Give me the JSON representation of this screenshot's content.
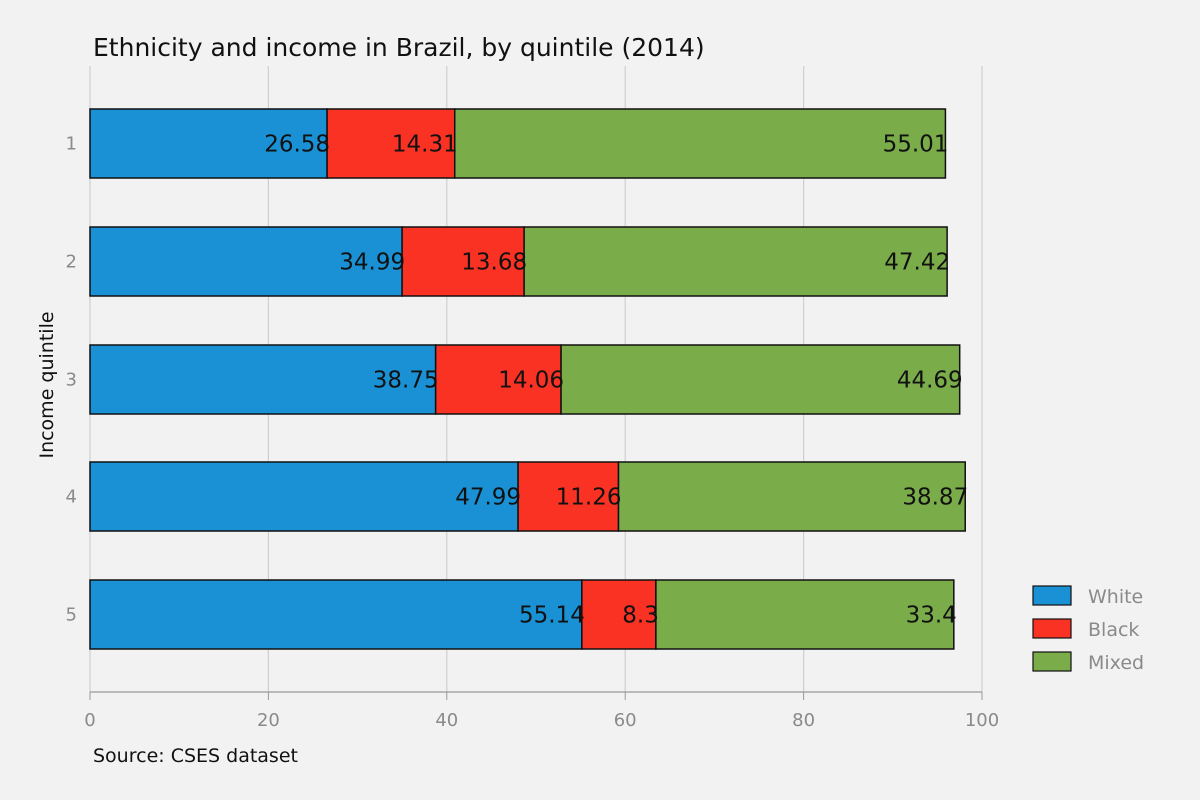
{
  "chart_data": {
    "type": "bar",
    "orientation": "horizontal",
    "stacked": true,
    "title": "Ethnicity and income in Brazil, by quintile (2014)",
    "source": "Source: CSES dataset",
    "xlabel": "",
    "ylabel": "Income quintile",
    "xlim": [
      0,
      100
    ],
    "x_ticks": [
      "0",
      "20",
      "40",
      "60",
      "80",
      "100"
    ],
    "categories": [
      "1",
      "2",
      "3",
      "4",
      "5"
    ],
    "series": [
      {
        "name": "White",
        "color": "#1a91d4",
        "values": [
          26.58,
          34.99,
          38.75,
          47.99,
          55.14
        ],
        "labels": [
          "26.58",
          "34.99",
          "38.75",
          "47.99",
          "55.14"
        ]
      },
      {
        "name": "Black",
        "color": "#f93223",
        "values": [
          14.31,
          13.68,
          14.06,
          11.26,
          8.3
        ],
        "labels": [
          "14.31",
          "13.68",
          "14.06",
          "11.26",
          "8.3"
        ]
      },
      {
        "name": "Mixed",
        "color": "#7aac4a",
        "values": [
          55.01,
          47.42,
          44.69,
          38.87,
          33.4
        ],
        "labels": [
          "55.01",
          "47.42",
          "44.69",
          "38.87",
          "33.4"
        ]
      }
    ],
    "grid": "vertical",
    "legend_position": "right"
  }
}
